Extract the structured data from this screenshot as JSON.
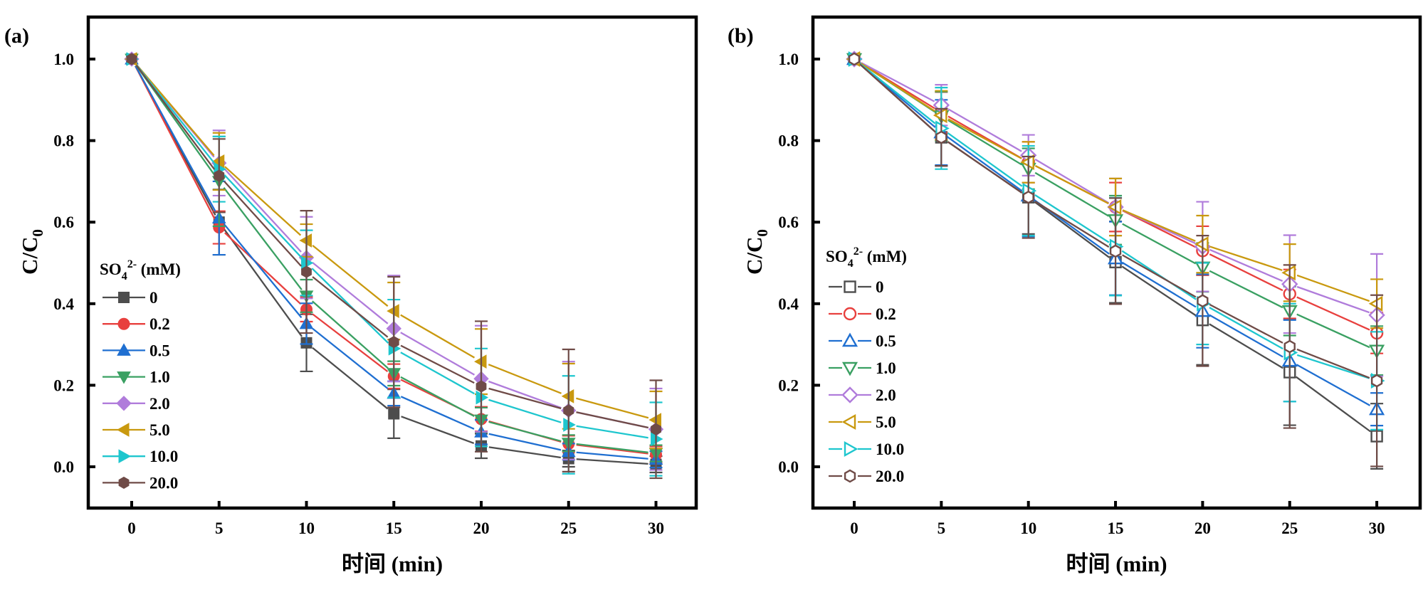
{
  "chart_data": [
    {
      "type": "line",
      "panel_label": "(a)",
      "title": "",
      "xlabel": "时间 (min)",
      "ylabel": "C/C0",
      "ylabel_main": "C/C",
      "ylabel_sub": "0",
      "xlim": [
        -2.5,
        35
      ],
      "ylim": [
        -0.1,
        1.1
      ],
      "xticks": [
        0,
        5,
        10,
        15,
        20,
        25,
        30
      ],
      "xtick_labels": [
        "0",
        "5",
        "10",
        "15",
        "20",
        "25",
        "30"
      ],
      "yticks": [
        0.0,
        0.2,
        0.4,
        0.6,
        0.8,
        1.0
      ],
      "ytick_labels": [
        "0.0",
        "0.2",
        "0.4",
        "0.6",
        "0.8",
        "1.0"
      ],
      "grid": false,
      "marker_fill": "filled",
      "legend": {
        "title_main": "SO",
        "title_sub": "4",
        "title_sup": "2-",
        "title_unit": " (mM)",
        "placement": "left"
      },
      "x": [
        0,
        5,
        10,
        15,
        20,
        25,
        30
      ],
      "series": [
        {
          "name": "0",
          "color": "#4d4d4d",
          "marker": "square",
          "values": [
            1.0,
            0.6,
            0.304,
            0.13,
            0.051,
            0.02,
            0.006
          ],
          "errors": [
            0,
            0.08,
            0.07,
            0.06,
            0.03,
            0.02,
            0.02
          ]
        },
        {
          "name": "0.2",
          "color": "#e8403e",
          "marker": "circle",
          "values": [
            1.0,
            0.587,
            0.386,
            0.222,
            0.117,
            0.056,
            0.03
          ],
          "errors": [
            0,
            0.04,
            0.03,
            0.03,
            0.03,
            0.02,
            0.02
          ]
        },
        {
          "name": "0.5",
          "color": "#1f6fd1",
          "marker": "triangle-up",
          "values": [
            1.0,
            0.61,
            0.351,
            0.18,
            0.085,
            0.037,
            0.018
          ],
          "errors": [
            0,
            0.09,
            0.05,
            0.03,
            0.03,
            0.02,
            0.02
          ]
        },
        {
          "name": "1.0",
          "color": "#3aa062",
          "marker": "triangle-down",
          "values": [
            1.0,
            0.7,
            0.419,
            0.229,
            0.115,
            0.058,
            0.033
          ],
          "errors": [
            0,
            0.11,
            0.04,
            0.03,
            0.03,
            0.02,
            0.02
          ]
        },
        {
          "name": "2.0",
          "color": "#b07cdb",
          "marker": "diamond",
          "values": [
            1.0,
            0.745,
            0.513,
            0.339,
            0.216,
            0.138,
            0.092
          ],
          "errors": [
            0,
            0.08,
            0.1,
            0.13,
            0.13,
            0.12,
            0.1
          ]
        },
        {
          "name": "5.0",
          "color": "#c9990f",
          "marker": "triangle-left",
          "values": [
            1.0,
            0.749,
            0.555,
            0.382,
            0.258,
            0.173,
            0.115
          ],
          "errors": [
            0,
            0.07,
            0.04,
            0.07,
            0.08,
            0.08,
            0.07
          ]
        },
        {
          "name": "10.0",
          "color": "#1ec6ce",
          "marker": "triangle-right",
          "values": [
            1.0,
            0.73,
            0.5,
            0.29,
            0.17,
            0.103,
            0.068
          ],
          "errors": [
            0,
            0.08,
            0.08,
            0.12,
            0.12,
            0.12,
            0.09
          ]
        },
        {
          "name": "20.0",
          "color": "#6f4b47",
          "marker": "hexagon",
          "values": [
            1.0,
            0.714,
            0.478,
            0.306,
            0.197,
            0.138,
            0.092
          ],
          "errors": [
            0,
            0.09,
            0.15,
            0.16,
            0.16,
            0.15,
            0.12
          ]
        }
      ]
    },
    {
      "type": "line",
      "panel_label": "(b)",
      "title": "",
      "xlabel": "时间 (min)",
      "ylabel": "C/C0",
      "ylabel_main": "C/C",
      "ylabel_sub": "0",
      "xlim": [
        -2.5,
        35
      ],
      "ylim": [
        -0.1,
        1.1
      ],
      "xticks": [
        0,
        5,
        10,
        15,
        20,
        25,
        30
      ],
      "xtick_labels": [
        "0",
        "5",
        "10",
        "15",
        "20",
        "25",
        "30"
      ],
      "yticks": [
        0.0,
        0.2,
        0.4,
        0.6,
        0.8,
        1.0
      ],
      "ytick_labels": [
        "0.0",
        "0.2",
        "0.4",
        "0.6",
        "0.8",
        "1.0"
      ],
      "grid": false,
      "marker_fill": "hollow",
      "legend": {
        "title_main": "SO",
        "title_sub": "4",
        "title_sup": "2-",
        "title_unit": " (mM)",
        "placement": "left"
      },
      "x": [
        0,
        5,
        10,
        15,
        20,
        25,
        30
      ],
      "series": [
        {
          "name": "0",
          "color": "#4d4d4d",
          "marker": "square",
          "values": [
            1.0,
            0.808,
            0.661,
            0.502,
            0.36,
            0.232,
            0.075
          ],
          "errors": [
            0,
            0.07,
            0.09,
            0.1,
            0.11,
            0.13,
            0.08
          ]
        },
        {
          "name": "0.2",
          "color": "#e8403e",
          "marker": "circle",
          "values": [
            1.0,
            0.869,
            0.747,
            0.637,
            0.53,
            0.424,
            0.328
          ],
          "errors": [
            0,
            0.05,
            0.05,
            0.06,
            0.06,
            0.06,
            0.05
          ]
        },
        {
          "name": "0.5",
          "color": "#1f6fd1",
          "marker": "triangle-up",
          "values": [
            1.0,
            0.82,
            0.665,
            0.511,
            0.382,
            0.26,
            0.141
          ],
          "errors": [
            0,
            0.08,
            0.1,
            0.09,
            0.09,
            0.1,
            0.04
          ]
        },
        {
          "name": "1.0",
          "color": "#3aa062",
          "marker": "triangle-down",
          "values": [
            1.0,
            0.86,
            0.731,
            0.605,
            0.489,
            0.382,
            0.285
          ],
          "errors": [
            0,
            0.06,
            0.05,
            0.06,
            0.06,
            0.06,
            0.06
          ]
        },
        {
          "name": "2.0",
          "color": "#b07cdb",
          "marker": "diamond",
          "values": [
            1.0,
            0.887,
            0.764,
            0.637,
            0.54,
            0.448,
            0.372
          ],
          "errors": [
            0,
            0.05,
            0.05,
            0.07,
            0.11,
            0.12,
            0.15
          ]
        },
        {
          "name": "5.0",
          "color": "#c9990f",
          "marker": "triangle-left",
          "values": [
            1.0,
            0.862,
            0.747,
            0.637,
            0.546,
            0.476,
            0.4
          ],
          "errors": [
            0,
            0.06,
            0.05,
            0.07,
            0.07,
            0.07,
            0.06
          ]
        },
        {
          "name": "10.0",
          "color": "#1ec6ce",
          "marker": "triangle-right",
          "values": [
            1.0,
            0.83,
            0.677,
            0.54,
            0.4,
            0.28,
            0.211
          ],
          "errors": [
            0,
            0.1,
            0.11,
            0.12,
            0.1,
            0.12,
            0.12
          ]
        },
        {
          "name": "20.0",
          "color": "#6f4b47",
          "marker": "hexagon",
          "values": [
            1.0,
            0.808,
            0.661,
            0.529,
            0.407,
            0.295,
            0.211
          ],
          "errors": [
            0,
            0.07,
            0.1,
            0.13,
            0.16,
            0.2,
            0.21
          ]
        }
      ]
    }
  ]
}
